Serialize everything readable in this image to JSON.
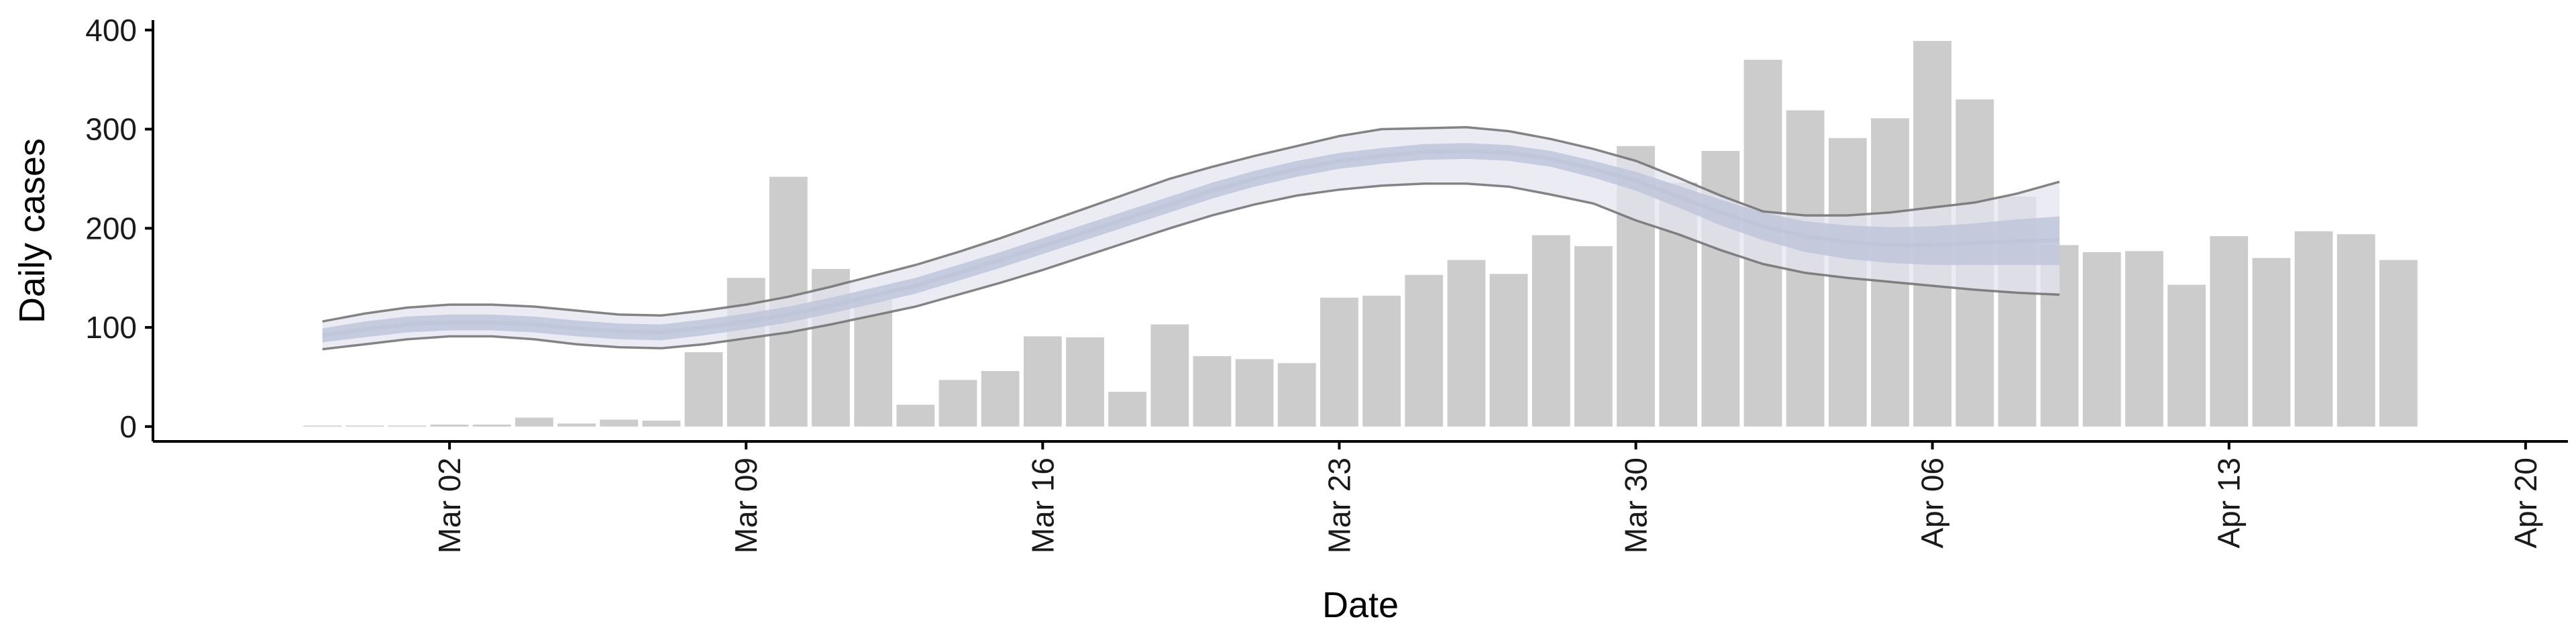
{
  "chart_data": {
    "type": "bar",
    "xlabel": "Date",
    "ylabel": "Daily cases",
    "ylim": [
      -15,
      410
    ],
    "yticks": [
      0,
      100,
      200,
      300,
      400
    ],
    "xlim": [
      "2020-02-24",
      "2020-04-21"
    ],
    "xticks": [
      {
        "date": "2020-03-02",
        "label": "Mar 02"
      },
      {
        "date": "2020-03-09",
        "label": "Mar 09"
      },
      {
        "date": "2020-03-16",
        "label": "Mar 16"
      },
      {
        "date": "2020-03-23",
        "label": "Mar 23"
      },
      {
        "date": "2020-03-30",
        "label": "Mar 30"
      },
      {
        "date": "2020-04-06",
        "label": "Apr 06"
      },
      {
        "date": "2020-04-13",
        "label": "Apr 13"
      },
      {
        "date": "2020-04-20",
        "label": "Apr 20"
      }
    ],
    "grid": false,
    "bars": {
      "start_date": "2020-02-28",
      "values": [
        1,
        1,
        1,
        2,
        2,
        9,
        3,
        7,
        6,
        75,
        150,
        252,
        159,
        128,
        22,
        47,
        56,
        91,
        90,
        35,
        103,
        71,
        68,
        64,
        130,
        132,
        153,
        168,
        154,
        193,
        182,
        283,
        246,
        278,
        370,
        319,
        291,
        311,
        389,
        330,
        232,
        183,
        176,
        177,
        143,
        192,
        170,
        197,
        194,
        168
      ],
      "color": "#cccccc"
    },
    "model": {
      "start_date": "2020-02-28",
      "end_date": "2020-04-10",
      "median": [
        92,
        98,
        103,
        105,
        105,
        103,
        99,
        96,
        95,
        100,
        106,
        113,
        122,
        132,
        142,
        155,
        168,
        182,
        196,
        210,
        224,
        238,
        250,
        260,
        268,
        273,
        277,
        278,
        276,
        270,
        260,
        248,
        232,
        216,
        202,
        192,
        186,
        183,
        183,
        185,
        187,
        188
      ],
      "inner_lower": [
        85,
        90,
        95,
        97,
        97,
        95,
        91,
        88,
        87,
        92,
        98,
        105,
        114,
        124,
        134,
        147,
        160,
        174,
        188,
        202,
        216,
        230,
        242,
        252,
        260,
        265,
        269,
        270,
        268,
        262,
        251,
        238,
        221,
        203,
        188,
        176,
        169,
        165,
        163,
        163,
        163,
        163
      ],
      "inner_upper": [
        99,
        106,
        111,
        113,
        113,
        111,
        107,
        104,
        103,
        108,
        114,
        121,
        130,
        140,
        150,
        163,
        176,
        190,
        204,
        218,
        232,
        246,
        258,
        268,
        276,
        281,
        285,
        286,
        284,
        278,
        268,
        257,
        243,
        229,
        216,
        207,
        203,
        201,
        202,
        205,
        209,
        212
      ],
      "outer_lower": [
        78,
        83,
        88,
        91,
        91,
        88,
        83,
        80,
        79,
        83,
        89,
        95,
        103,
        112,
        121,
        133,
        145,
        158,
        172,
        186,
        200,
        213,
        224,
        233,
        239,
        243,
        245,
        245,
        242,
        234,
        225,
        208,
        194,
        178,
        164,
        155,
        150,
        146,
        142,
        138,
        135,
        133
      ],
      "outer_upper": [
        106,
        114,
        120,
        123,
        123,
        121,
        117,
        113,
        112,
        117,
        123,
        131,
        141,
        152,
        163,
        176,
        190,
        205,
        220,
        235,
        250,
        262,
        273,
        283,
        293,
        300,
        301,
        302,
        298,
        290,
        280,
        268,
        251,
        233,
        217,
        213,
        213,
        216,
        221,
        226,
        235,
        247
      ],
      "inner_color": "#bdc4d9",
      "outer_color": "#e4e6ef",
      "edge_color": "#707070"
    }
  }
}
